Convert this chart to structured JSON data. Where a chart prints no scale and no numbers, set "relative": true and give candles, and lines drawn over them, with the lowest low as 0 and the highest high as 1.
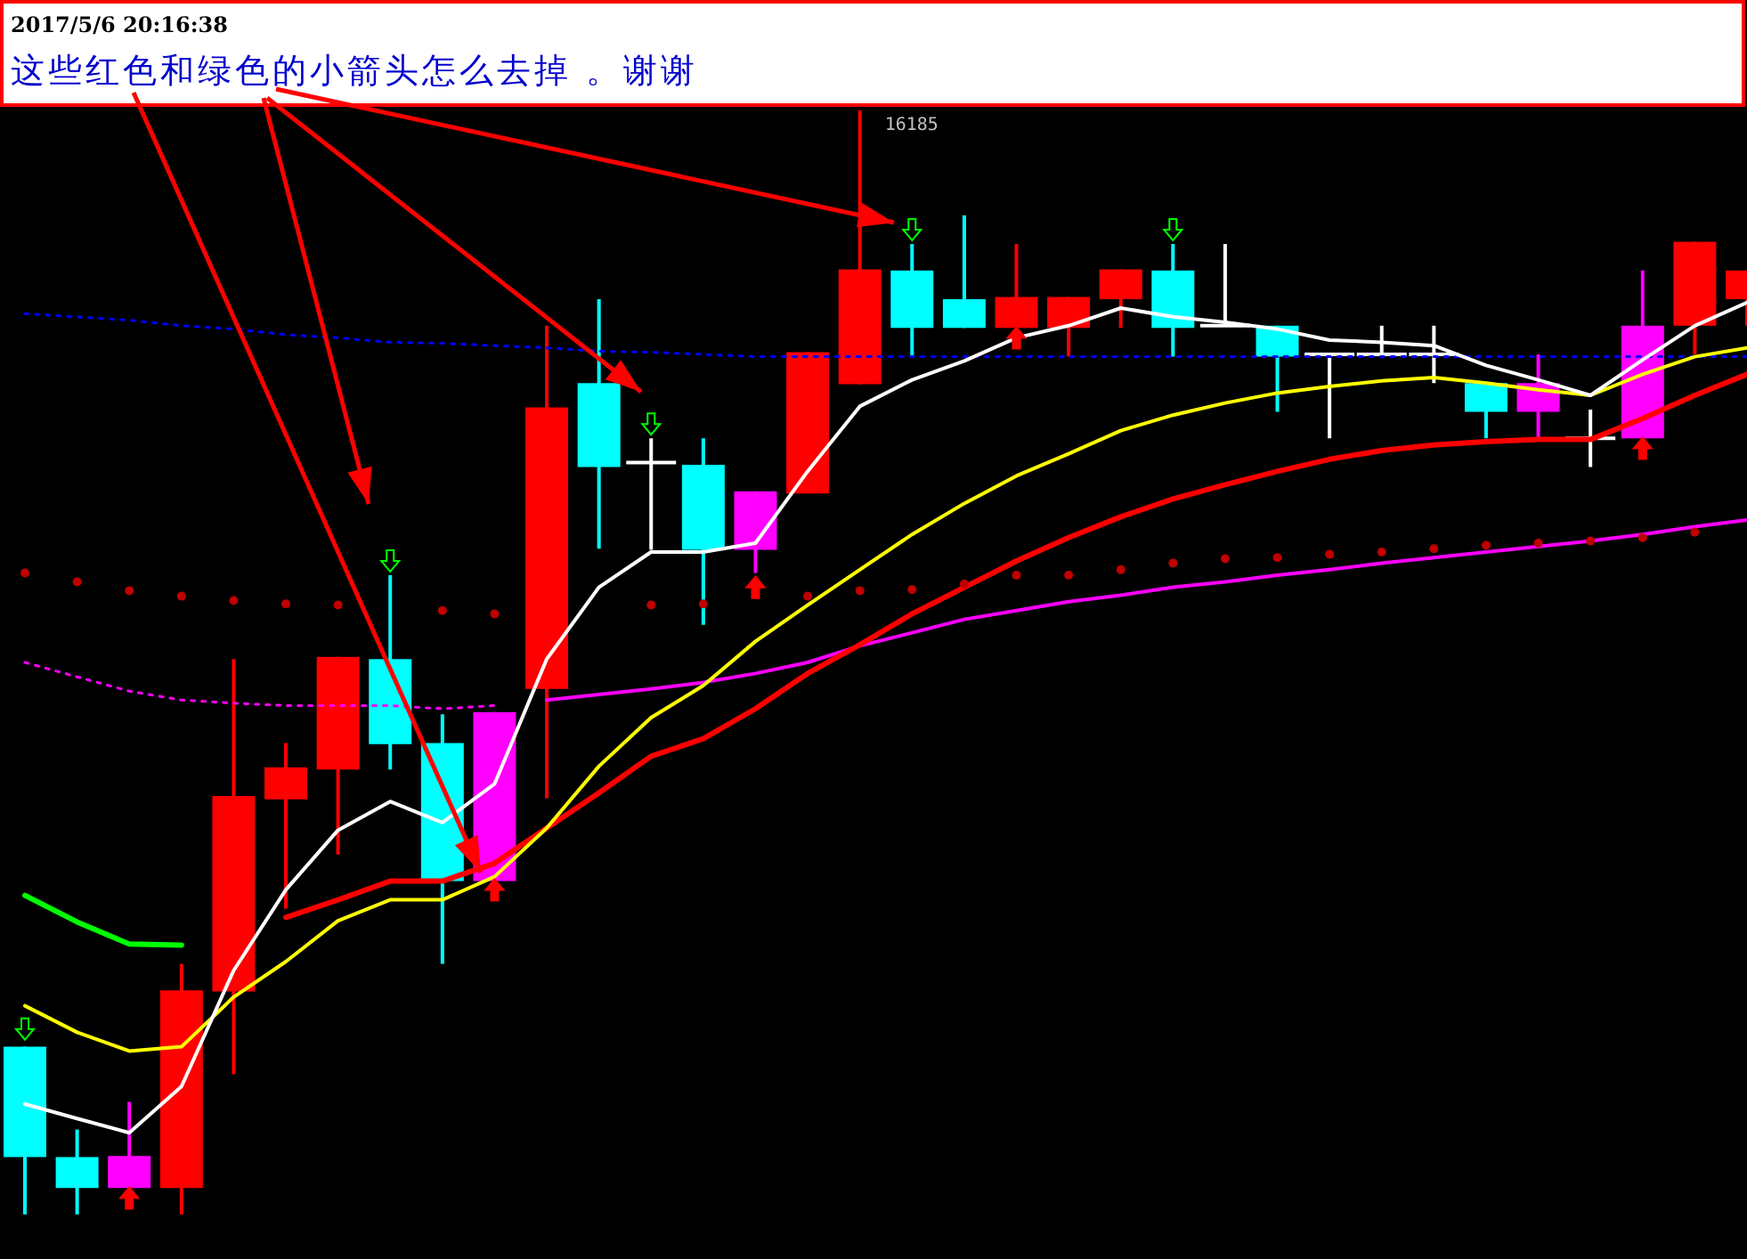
{
  "chart_data": {
    "type": "candlestick",
    "title": "2017/5/6 20:16:38",
    "subtitle": "这些红色和绿色的小箭头怎么去掉 。谢谢",
    "relative": true,
    "categories": [
      null,
      null,
      null,
      null,
      null,
      null,
      null,
      null,
      null,
      null,
      null,
      null,
      null,
      null,
      null,
      null,
      null,
      null,
      null,
      null,
      null,
      null,
      null,
      null,
      null,
      null,
      null,
      null,
      null,
      null,
      null,
      null,
      null,
      null
    ],
    "ohlc": [
      [
        0.152,
        0.152,
        0,
        0.052
      ],
      [
        0.052,
        0.077,
        0,
        0.024
      ],
      [
        0.024,
        0.102,
        0.024,
        0.053
      ],
      [
        0.024,
        0.227,
        0,
        0.203
      ],
      [
        0.202,
        0.503,
        0.127,
        0.379
      ],
      [
        0.376,
        0.427,
        0.277,
        0.405
      ],
      [
        0.403,
        0.505,
        0.326,
        0.505
      ],
      [
        0.503,
        0.579,
        0.403,
        0.426
      ],
      [
        0.427,
        0.453,
        0.227,
        0.302
      ],
      [
        0.302,
        0.455,
        0.302,
        0.455
      ],
      [
        0.476,
        0.805,
        0.377,
        0.731
      ],
      [
        0.753,
        0.829,
        0.603,
        0.677
      ],
      [
        0.681,
        0.703,
        0.602,
        0.681
      ],
      [
        0.679,
        0.703,
        0.534,
        0.602
      ],
      [
        0.602,
        0.655,
        0.581,
        0.655
      ],
      [
        0.653,
        0.781,
        0.653,
        0.781
      ],
      [
        0.752,
        1,
        0.752,
        0.856
      ],
      [
        0.855,
        0.879,
        0.777,
        0.803
      ],
      [
        0.829,
        0.905,
        0.803,
        0.803
      ],
      [
        0.803,
        0.879,
        0.803,
        0.831
      ],
      [
        0.803,
        0.831,
        0.777,
        0.831
      ],
      [
        0.829,
        0.856,
        0.803,
        0.856
      ],
      [
        0.855,
        0.879,
        0.777,
        0.803
      ],
      [
        0.805,
        0.879,
        0.805,
        0.805
      ],
      [
        0.805,
        0.805,
        0.727,
        0.777
      ],
      [
        0.779,
        0.779,
        0.703,
        0.779
      ],
      [
        0.779,
        0.805,
        0.779,
        0.779
      ],
      [
        0.779,
        0.805,
        0.753,
        0.779
      ],
      [
        0.753,
        0.753,
        0.703,
        0.727
      ],
      [
        0.727,
        0.779,
        0.703,
        0.753
      ],
      [
        0.703,
        0.729,
        0.677,
        0.703
      ],
      [
        0.703,
        0.855,
        0.703,
        0.805
      ],
      [
        0.805,
        0.881,
        0.779,
        0.881
      ],
      [
        0.829,
        0.855,
        0.805,
        0.855
      ]
    ],
    "colors": [
      "#00ffff",
      "#00ffff",
      "#ff00ff",
      "#ff0000",
      "#ff0000",
      "#ff0000",
      "#ff0000",
      "#00ffff",
      "#00ffff",
      "#ff00ff",
      "#ff0000",
      "#00ffff",
      "#ffffff",
      "#00ffff",
      "#ff00ff",
      "#ff0000",
      "#ff0000",
      "#00ffff",
      "#00ffff",
      "#ff0000",
      "#ff0000",
      "#ff0000",
      "#00ffff",
      "#ffffff",
      "#00ffff",
      "#ffffff",
      "#ffffff",
      "#ffffff",
      "#00ffff",
      "#ff00ff",
      "#ffffff",
      "#ff00ff",
      "#ff0000",
      "#ff0000"
    ],
    "series": [
      {
        "type": "line",
        "color": "#0000ff",
        "line_style": "dotted",
        "values": [
          0.816,
          0.813,
          0.81,
          0.805,
          0.802,
          0.797,
          0.794,
          0.79,
          0.789,
          0.787,
          0.785,
          0.782,
          0.781,
          0.779,
          0.777,
          0.777,
          0.777,
          0.777,
          0.777,
          0.777,
          0.777,
          0.777,
          0.777,
          0.777,
          0.777,
          0.777,
          0.777,
          0.777,
          0.777,
          0.777,
          0.777,
          0.777,
          0.777,
          0.777
        ]
      },
      {
        "type": "line",
        "color": "#ff00ff",
        "line_style": "dotted",
        "values": [
          0.5,
          0.487,
          0.474,
          0.466,
          0.463,
          0.461,
          0.461,
          0.461,
          0.458,
          0.461,
          null,
          null,
          null,
          null,
          null,
          null,
          null,
          null,
          null,
          null,
          null,
          null,
          null,
          null,
          null,
          null,
          null,
          null,
          null,
          null,
          null,
          null,
          null,
          null
        ]
      },
      {
        "type": "line",
        "color": "#ff00ff",
        "line_style": "solid",
        "values": [
          null,
          null,
          null,
          null,
          null,
          null,
          null,
          null,
          null,
          null,
          0.466,
          0.471,
          0.476,
          0.482,
          0.49,
          0.5,
          0.515,
          0.527,
          0.539,
          0.547,
          0.555,
          0.561,
          0.568,
          0.573,
          0.579,
          0.584,
          0.59,
          0.595,
          0.6,
          0.605,
          0.61,
          0.616,
          0.623,
          0.629
        ]
      },
      {
        "type": "line",
        "color": "#00ff00",
        "line_style": "solid",
        "values": [
          0.289,
          0.265,
          0.245,
          0.244,
          null,
          null,
          null,
          null,
          null,
          null,
          null,
          null,
          null,
          null,
          null,
          null,
          null,
          null,
          null,
          null,
          null,
          null,
          null,
          null,
          null,
          null,
          null,
          null,
          null,
          null,
          null,
          null,
          null,
          null
        ]
      },
      {
        "type": "line",
        "color": "#ff0000",
        "line_style": "solid",
        "values": [
          null,
          null,
          null,
          null,
          null,
          0.269,
          0.285,
          0.302,
          0.302,
          0.318,
          0.35,
          0.382,
          0.415,
          0.431,
          0.458,
          0.49,
          0.516,
          0.544,
          0.568,
          0.592,
          0.613,
          0.632,
          0.648,
          0.661,
          0.673,
          0.684,
          0.692,
          0.697,
          0.7,
          0.702,
          0.702,
          0.721,
          0.742,
          0.761
        ]
      },
      {
        "type": "line",
        "color": "#ffff00",
        "line_style": "solid",
        "values": [
          0.189,
          0.165,
          0.148,
          0.152,
          0.197,
          0.229,
          0.266,
          0.285,
          0.285,
          0.306,
          0.35,
          0.406,
          0.45,
          0.479,
          0.519,
          0.552,
          0.584,
          0.616,
          0.644,
          0.669,
          0.689,
          0.71,
          0.724,
          0.735,
          0.744,
          0.75,
          0.755,
          0.758,
          0.753,
          0.747,
          0.742,
          0.761,
          0.777,
          0.785
        ]
      },
      {
        "type": "line",
        "color": "#ffffff",
        "line_style": "solid",
        "values": [
          0.1,
          0.087,
          0.074,
          0.116,
          0.221,
          0.294,
          0.348,
          0.374,
          0.355,
          0.39,
          0.503,
          0.568,
          0.6,
          0.6,
          0.608,
          0.673,
          0.732,
          0.756,
          0.773,
          0.794,
          0.805,
          0.821,
          0.813,
          0.808,
          0.802,
          0.792,
          0.79,
          0.787,
          0.769,
          0.756,
          0.742,
          0.774,
          0.805,
          0.826
        ]
      },
      {
        "type": "scatter",
        "color": "#c00000",
        "marker": "circle",
        "values": [
          0.581,
          0.573,
          0.565,
          0.56,
          0.556,
          0.553,
          0.552,
          null,
          0.547,
          0.544,
          null,
          null,
          0.552,
          0.553,
          null,
          0.56,
          0.565,
          0.566,
          0.571,
          0.579,
          0.579,
          0.584,
          0.59,
          0.594,
          0.595,
          0.598,
          0.6,
          0.603,
          0.606,
          0.608,
          0.61,
          0.613,
          0.618,
          null
        ]
      },
      {
        "type": "scatter",
        "color": "#00ff00",
        "marker": "triangle",
        "values": [
          0.168,
          null,
          null,
          null,
          null,
          null,
          null,
          0.592,
          null,
          null,
          null,
          null,
          0.716,
          null,
          null,
          null,
          null,
          0.892,
          null,
          null,
          null,
          null,
          0.892,
          null,
          null,
          null,
          null,
          null,
          null,
          null,
          null,
          null,
          null,
          null
        ]
      },
      {
        "type": "scatter",
        "color": "#ff0000",
        "marker": "triangle",
        "values": [
          null,
          null,
          0.015,
          null,
          null,
          null,
          null,
          null,
          null,
          0.294,
          null,
          null,
          null,
          null,
          0.568,
          null,
          null,
          null,
          null,
          0.794,
          null,
          null,
          null,
          null,
          null,
          null,
          null,
          null,
          null,
          null,
          null,
          0.694,
          null,
          null
        ]
      }
    ],
    "annotations": [
      "16185"
    ]
  }
}
